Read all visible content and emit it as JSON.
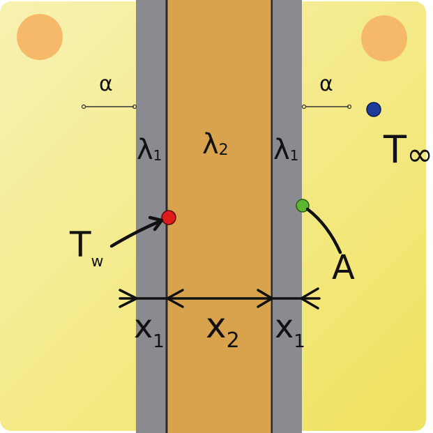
{
  "labels": {
    "alpha_left": "α",
    "alpha_right": "α",
    "lambda1_left": "λ",
    "lambda1_left_sub": "1",
    "lambda2": "λ",
    "lambda2_sub": "2",
    "lambda1_right": "λ",
    "lambda1_right_sub": "1",
    "t_inf": "T",
    "t_inf_sub": "∞",
    "t_w": "T",
    "t_w_sub": "w",
    "area": "A",
    "x1_left": "x",
    "x1_left_sub": "1",
    "x2": "x",
    "x2_sub": "2",
    "x1_right": "x",
    "x1_right_sub": "1"
  },
  "colors": {
    "background_light": "#f7f0a8",
    "background_dark": "#f1e466",
    "wall_outer": "#8a8b90",
    "wall_core": "#d9a24d",
    "sun": "#f6b96a",
    "point_tw": "#e01b1b",
    "point_a": "#5db531",
    "point_tinf": "#1f3c9a",
    "ink": "#111111"
  }
}
